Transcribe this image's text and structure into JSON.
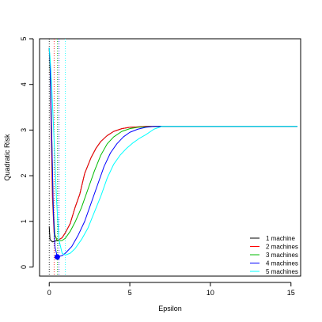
{
  "chart_data": {
    "type": "line",
    "title": "",
    "xlabel": "Epsilon",
    "ylabel": "Quadratic Risk",
    "xlim": [
      -0.6,
      15.6
    ],
    "ylim": [
      -0.2,
      5.0
    ],
    "xticks": [
      0,
      5,
      10,
      15
    ],
    "yticks": [
      0,
      1,
      2,
      3,
      4,
      5
    ],
    "grid": false,
    "legend_position": "bottom-right",
    "vertical_dotted_lines": [
      {
        "x": 0.0,
        "color": "#000000"
      },
      {
        "x": 0.3,
        "color": "#FF0000"
      },
      {
        "x": 0.5,
        "color": "#00BB00"
      },
      {
        "x": 0.6,
        "color": "#0000FF"
      },
      {
        "x": 1.0,
        "color": "#00FFFF"
      }
    ],
    "marker_point": {
      "x": 0.5,
      "y": 0.22,
      "color": "#0000FF"
    },
    "series": [
      {
        "name": "1 machine",
        "color": "#000000",
        "points": [
          [
            0,
            0.88
          ],
          [
            0.05,
            0.6
          ],
          [
            0.2,
            0.55
          ],
          [
            0.5,
            0.58
          ],
          [
            0.8,
            0.64
          ],
          [
            1.0,
            0.75
          ],
          [
            1.3,
            0.95
          ],
          [
            1.6,
            1.3
          ],
          [
            1.9,
            1.6
          ],
          [
            2.2,
            2.05
          ],
          [
            2.6,
            2.4
          ],
          [
            2.9,
            2.6
          ],
          [
            3.2,
            2.75
          ],
          [
            3.6,
            2.88
          ],
          [
            4.0,
            2.97
          ],
          [
            4.5,
            3.03
          ],
          [
            5.0,
            3.06
          ],
          [
            5.5,
            3.07
          ],
          [
            6.0,
            3.08
          ],
          [
            7,
            3.08
          ],
          [
            10,
            3.08
          ],
          [
            15.4,
            3.08
          ]
        ]
      },
      {
        "name": "2 machines",
        "color": "#FF0000",
        "points": [
          [
            0,
            4.8
          ],
          [
            0.05,
            4.4
          ],
          [
            0.12,
            3.0
          ],
          [
            0.2,
            1.5
          ],
          [
            0.3,
            0.75
          ],
          [
            0.5,
            0.58
          ],
          [
            0.8,
            0.64
          ],
          [
            1.0,
            0.75
          ],
          [
            1.3,
            0.95
          ],
          [
            1.6,
            1.3
          ],
          [
            1.9,
            1.6
          ],
          [
            2.2,
            2.05
          ],
          [
            2.6,
            2.4
          ],
          [
            2.9,
            2.6
          ],
          [
            3.2,
            2.75
          ],
          [
            3.6,
            2.88
          ],
          [
            4.0,
            2.97
          ],
          [
            4.5,
            3.03
          ],
          [
            5.0,
            3.06
          ],
          [
            5.5,
            3.07
          ],
          [
            6.0,
            3.08
          ],
          [
            7,
            3.08
          ],
          [
            10,
            3.08
          ],
          [
            15.4,
            3.08
          ]
        ]
      },
      {
        "name": "3 machines",
        "color": "#00BB00",
        "points": [
          [
            0,
            4.8
          ],
          [
            0.05,
            4.4
          ],
          [
            0.15,
            3.0
          ],
          [
            0.25,
            1.3
          ],
          [
            0.35,
            0.7
          ],
          [
            0.5,
            0.57
          ],
          [
            0.8,
            0.58
          ],
          [
            1.0,
            0.63
          ],
          [
            1.3,
            0.78
          ],
          [
            1.6,
            0.98
          ],
          [
            2.0,
            1.3
          ],
          [
            2.4,
            1.7
          ],
          [
            2.8,
            2.1
          ],
          [
            3.2,
            2.45
          ],
          [
            3.6,
            2.7
          ],
          [
            4.0,
            2.85
          ],
          [
            4.5,
            2.97
          ],
          [
            5.0,
            3.03
          ],
          [
            5.5,
            3.06
          ],
          [
            6.0,
            3.07
          ],
          [
            6.5,
            3.08
          ],
          [
            10,
            3.08
          ],
          [
            15.4,
            3.08
          ]
        ]
      },
      {
        "name": "4 machines",
        "color": "#0000FF",
        "points": [
          [
            0,
            4.8
          ],
          [
            0.05,
            4.5
          ],
          [
            0.15,
            3.0
          ],
          [
            0.25,
            1.3
          ],
          [
            0.35,
            0.45
          ],
          [
            0.5,
            0.22
          ],
          [
            0.8,
            0.25
          ],
          [
            1.0,
            0.3
          ],
          [
            1.4,
            0.45
          ],
          [
            1.8,
            0.7
          ],
          [
            2.2,
            1.0
          ],
          [
            2.6,
            1.4
          ],
          [
            3.0,
            1.8
          ],
          [
            3.4,
            2.2
          ],
          [
            3.8,
            2.5
          ],
          [
            4.2,
            2.7
          ],
          [
            4.6,
            2.85
          ],
          [
            5.0,
            2.95
          ],
          [
            5.5,
            3.02
          ],
          [
            6.0,
            3.06
          ],
          [
            6.5,
            3.08
          ],
          [
            10,
            3.08
          ],
          [
            15.4,
            3.08
          ]
        ]
      },
      {
        "name": "5 machines",
        "color": "#00FFFF",
        "points": [
          [
            0,
            4.8
          ],
          [
            0.05,
            4.6
          ],
          [
            0.15,
            4.0
          ],
          [
            0.3,
            2.8
          ],
          [
            0.45,
            1.5
          ],
          [
            0.6,
            0.6
          ],
          [
            0.8,
            0.3
          ],
          [
            1.0,
            0.26
          ],
          [
            1.3,
            0.3
          ],
          [
            1.6,
            0.4
          ],
          [
            2.0,
            0.6
          ],
          [
            2.4,
            0.85
          ],
          [
            2.8,
            1.2
          ],
          [
            3.2,
            1.55
          ],
          [
            3.6,
            1.95
          ],
          [
            4.0,
            2.25
          ],
          [
            4.4,
            2.45
          ],
          [
            4.8,
            2.6
          ],
          [
            5.2,
            2.72
          ],
          [
            5.6,
            2.82
          ],
          [
            6.0,
            2.9
          ],
          [
            6.5,
            3.02
          ],
          [
            7.0,
            3.08
          ],
          [
            10,
            3.08
          ],
          [
            15.4,
            3.08
          ]
        ]
      }
    ]
  }
}
